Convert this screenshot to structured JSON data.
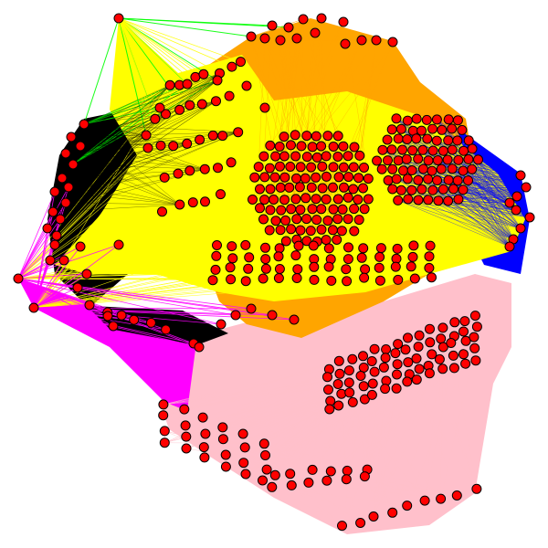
{
  "colors": {
    "background": "#ffffff",
    "edge_green": "#00ff00",
    "edge_yellow": "#ffff00",
    "edge_black": "#000000",
    "edge_orange": "#ffa500",
    "edge_blue": "#0000ff",
    "edge_magenta": "#ff00ff",
    "edge_pink": "#ffc0cb",
    "node_fill": "#ff0000",
    "node_stroke": "#000000"
  }
}
